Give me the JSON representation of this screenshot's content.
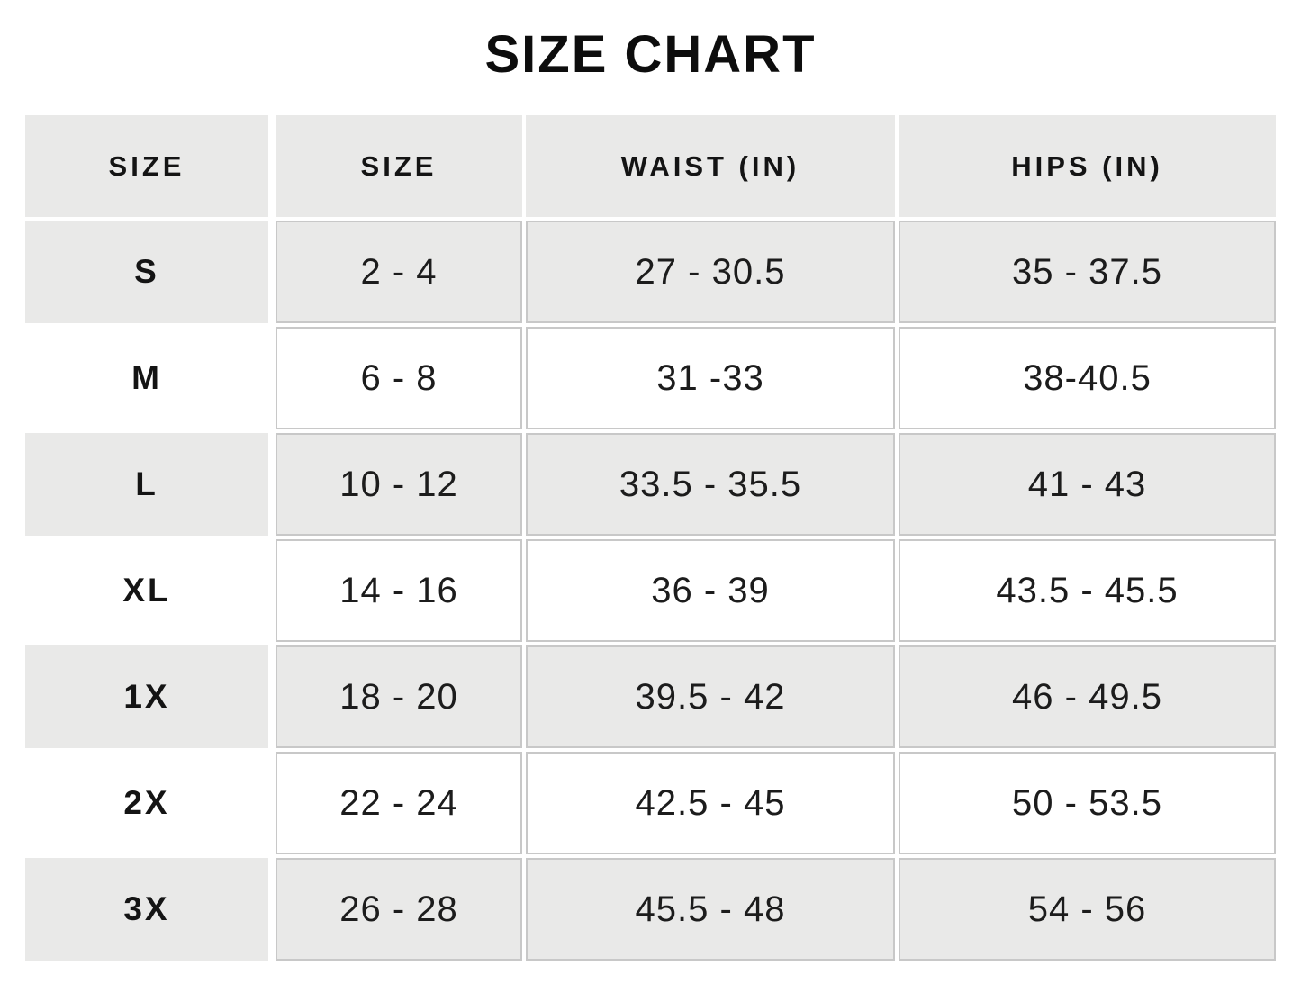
{
  "page": {
    "title": "SIZE CHART"
  },
  "chart_data": {
    "type": "table",
    "title": "SIZE CHART",
    "columns": [
      "SIZE",
      "SIZE",
      "WAIST (IN)",
      "HIPS (IN)"
    ],
    "rows": [
      [
        "S",
        "2 - 4",
        "27 - 30.5",
        "35 - 37.5"
      ],
      [
        "M",
        "6 - 8",
        "31 -33",
        "38-40.5"
      ],
      [
        "L",
        "10 - 12",
        "33.5 - 35.5",
        "41 - 43"
      ],
      [
        "XL",
        "14 - 16",
        "36 - 39",
        "43.5 - 45.5"
      ],
      [
        "1X",
        "18 - 20",
        "39.5 - 42",
        "46 - 49.5"
      ],
      [
        "2X",
        "22 - 24",
        "42.5 - 45",
        "50 - 53.5"
      ],
      [
        "3X",
        "26 - 28",
        "45.5 - 48",
        "54 - 56"
      ]
    ],
    "layout": {
      "striped_rows": [
        "header",
        "S",
        "L",
        "1X",
        "3X"
      ],
      "label_column_borderless": true,
      "grid_on": true
    }
  },
  "style": {
    "page_bg": "#ffffff",
    "stripe_bg": "#e9e9e8",
    "alt_row_bg": "#ffffff",
    "cell_border_color": "#c8c8c8",
    "text_color": "#111111"
  }
}
